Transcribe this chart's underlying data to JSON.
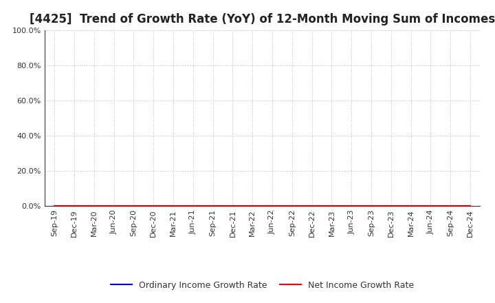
{
  "title": "[4425]  Trend of Growth Rate (YoY) of 12-Month Moving Sum of Incomes",
  "title_fontsize": 12,
  "title_color": "#222222",
  "background_color": "#ffffff",
  "plot_bg_color": "#ffffff",
  "grid_color": "#aaaaaa",
  "ylim": [
    0.0,
    1.0
  ],
  "yticks": [
    0.0,
    0.2,
    0.4,
    0.6,
    0.8,
    1.0
  ],
  "ytick_labels": [
    "0.0%",
    "20.0%",
    "40.0%",
    "60.0%",
    "80.0%",
    "100.0%"
  ],
  "x_labels": [
    "Sep-19",
    "Dec-19",
    "Mar-20",
    "Jun-20",
    "Sep-20",
    "Dec-20",
    "Mar-21",
    "Jun-21",
    "Sep-21",
    "Dec-21",
    "Mar-22",
    "Jun-22",
    "Sep-22",
    "Dec-22",
    "Mar-23",
    "Jun-23",
    "Sep-23",
    "Dec-23",
    "Mar-24",
    "Jun-24",
    "Sep-24",
    "Dec-24"
  ],
  "ordinary_income_color": "#0000ff",
  "net_income_color": "#ff0000",
  "ordinary_income_label": "Ordinary Income Growth Rate",
  "net_income_label": "Net Income Growth Rate",
  "line_width": 1.5,
  "legend_fontsize": 9,
  "tick_fontsize": 8,
  "ordinary_income_data": [
    0.0,
    0.0,
    0.0,
    0.0,
    0.0,
    0.0,
    0.0,
    0.0,
    0.0,
    0.0,
    0.0,
    0.0,
    0.0,
    0.0,
    0.0,
    0.0,
    0.0,
    0.0,
    0.0,
    0.0,
    0.0,
    0.0
  ],
  "net_income_data": [
    0.0,
    0.0,
    0.0,
    0.0,
    0.0,
    0.0,
    0.0,
    0.0,
    0.0,
    0.0,
    0.0,
    0.0,
    0.0,
    0.0,
    0.0,
    0.0,
    0.0,
    0.0,
    0.0,
    0.0,
    0.0,
    0.0
  ]
}
